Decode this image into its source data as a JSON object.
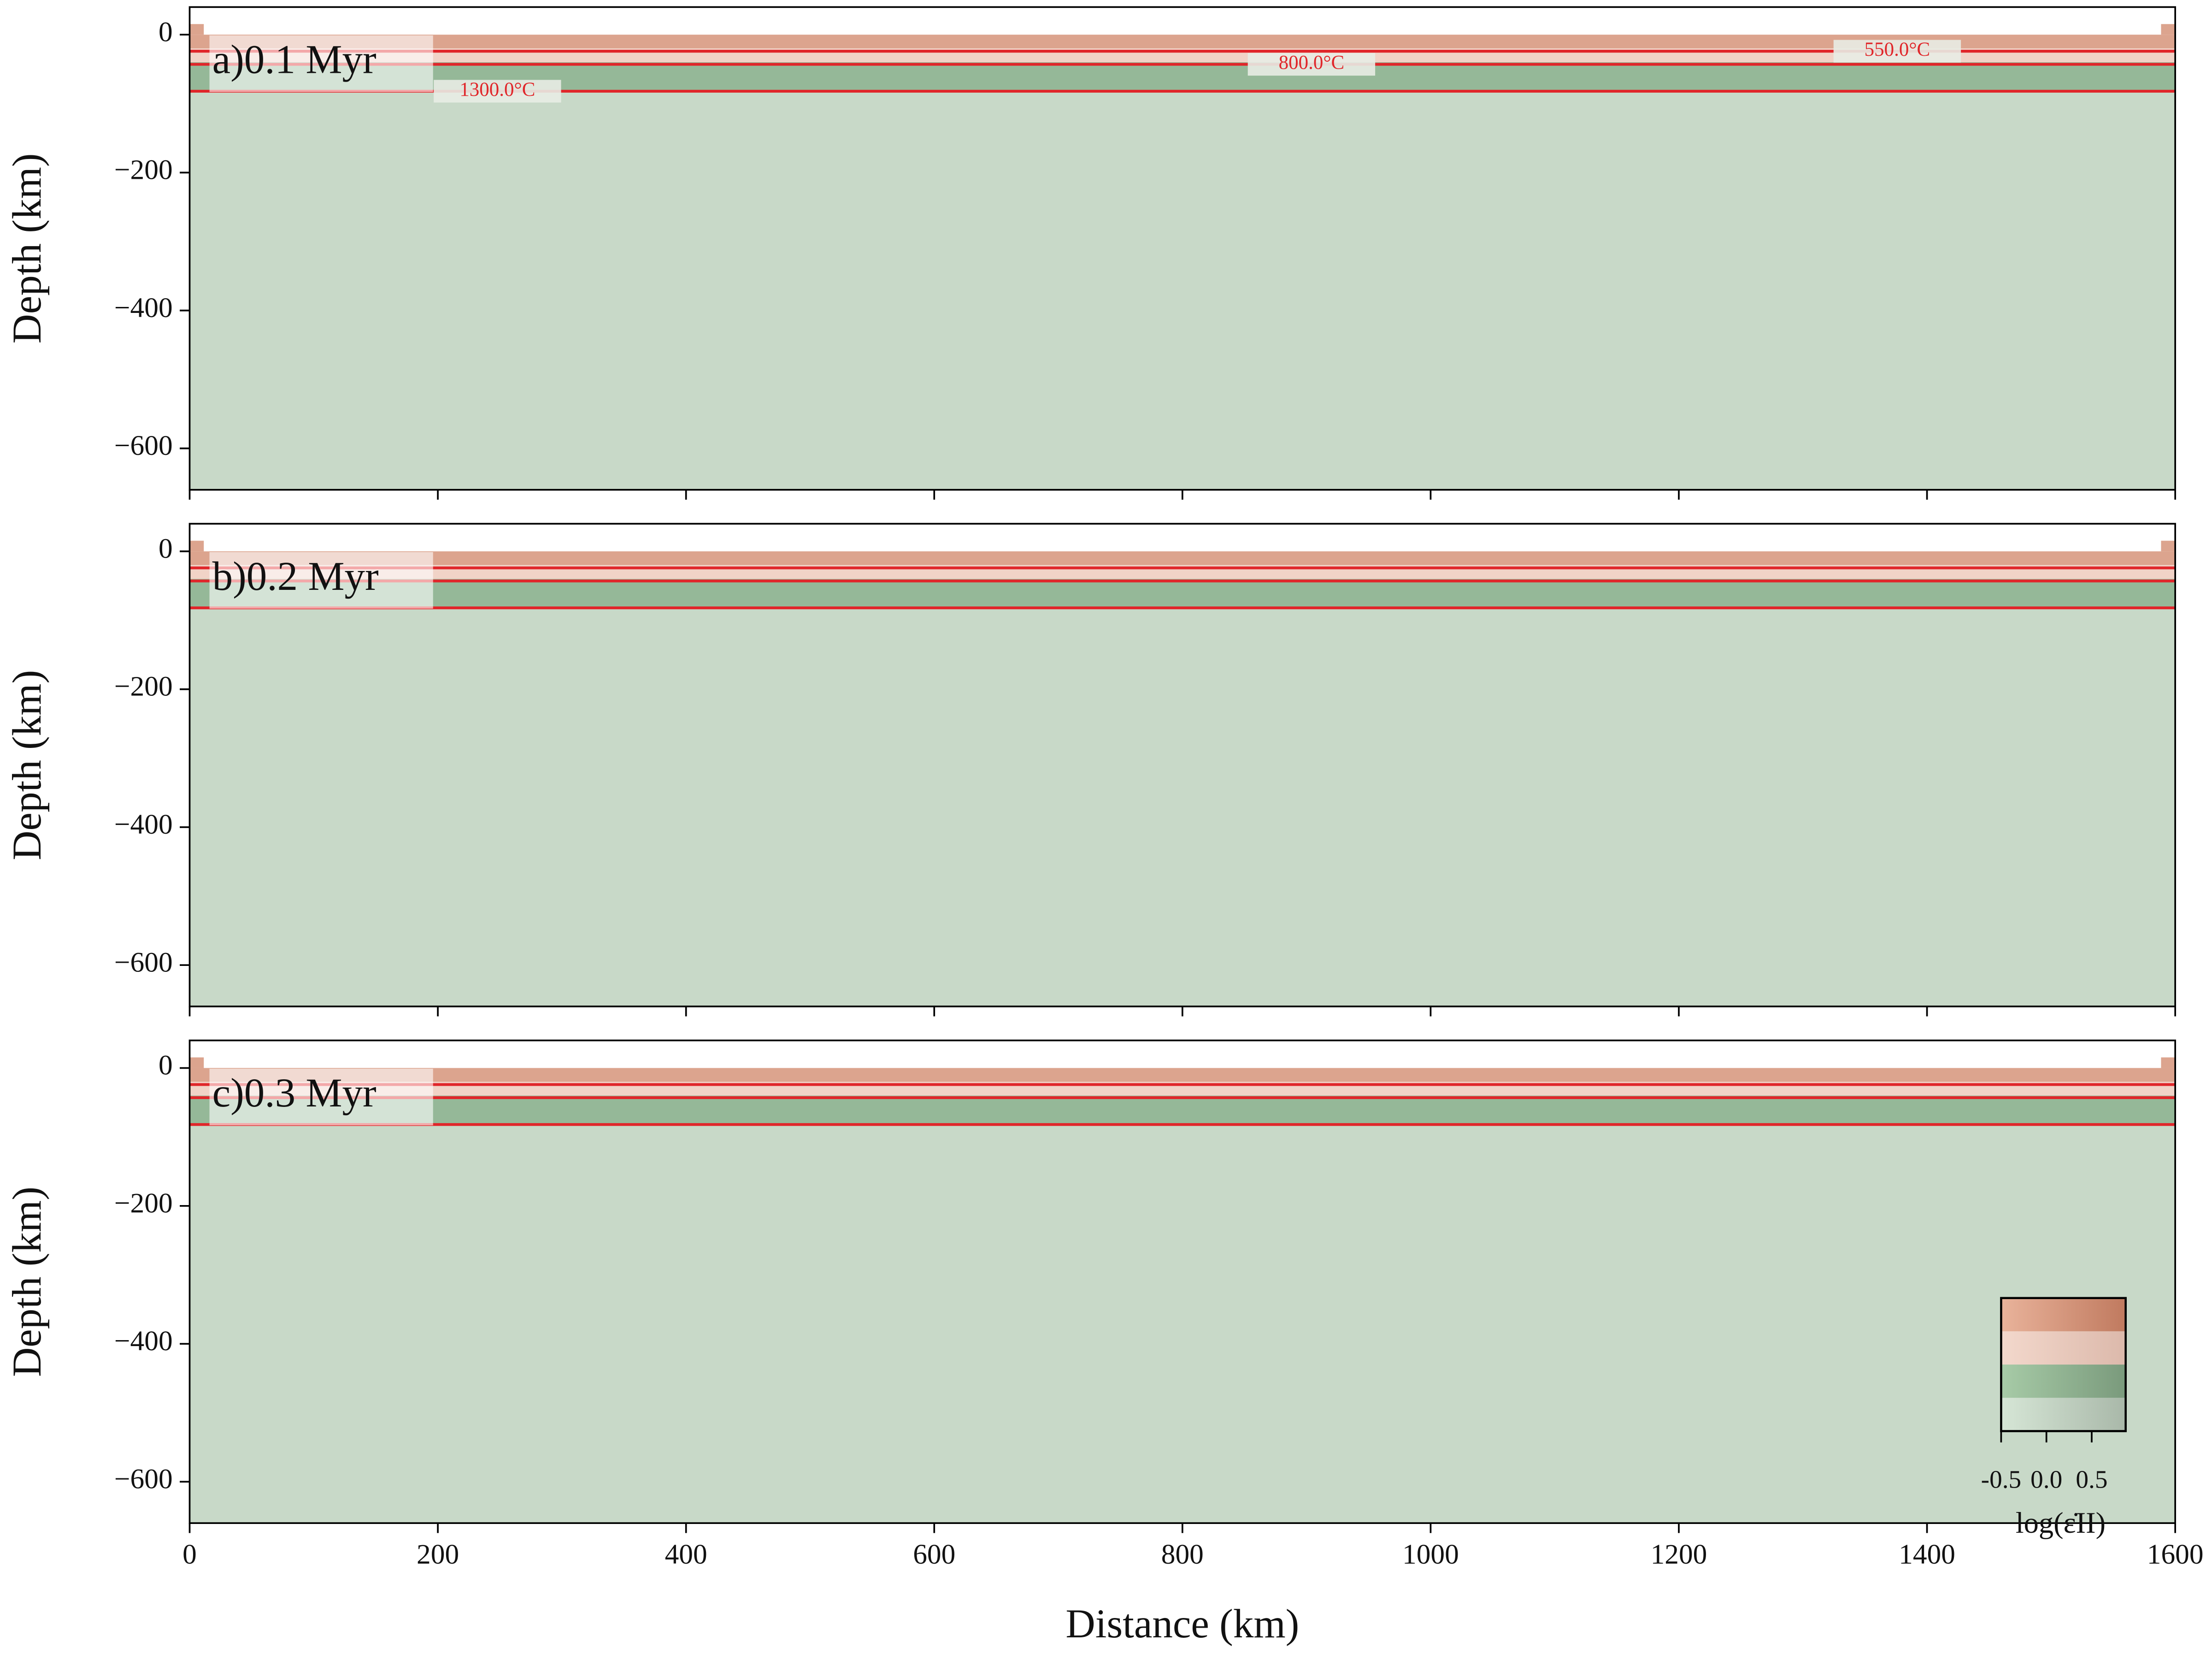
{
  "chart_data": [
    {
      "type": "heatmap",
      "panel_label": "a)0.1 Myr",
      "ylabel": "Depth (km)",
      "xlim": [
        0,
        1600
      ],
      "ylim": [
        -660,
        40
      ],
      "xticks": [
        0,
        200,
        400,
        600,
        800,
        1000,
        1200,
        1400,
        1600
      ],
      "yticks": [
        0,
        {
          "value": -200,
          "label": "−200"
        },
        {
          "value": -400,
          "label": "−400"
        },
        {
          "value": -600,
          "label": "−600"
        }
      ],
      "layers": [
        {
          "color": "#dca48e",
          "top": 0,
          "bottom": -20
        },
        {
          "color": "#f1d3c7",
          "top": -20,
          "bottom": -40
        },
        {
          "color": "#95b898",
          "top": -40,
          "bottom": -82
        },
        {
          "color": "#c8d9c8",
          "top": -82,
          "bottom": -660
        }
      ],
      "isotherm_color": "#e0262a",
      "isotherm_depths": [
        -24,
        -43,
        -82
      ],
      "isotherm_labels": [
        "550.0°C",
        "800.0°C",
        "1300.0°C"
      ]
    },
    {
      "type": "heatmap",
      "panel_label": "b)0.2 Myr",
      "ylabel": "Depth (km)",
      "xlim": [
        0,
        1600
      ],
      "ylim": [
        -660,
        40
      ],
      "xticks": [
        0,
        200,
        400,
        600,
        800,
        1000,
        1200,
        1400,
        1600
      ],
      "yticks": [
        0,
        {
          "value": -200,
          "label": "−200"
        },
        {
          "value": -400,
          "label": "−400"
        },
        {
          "value": -600,
          "label": "−600"
        }
      ],
      "layers": [
        {
          "color": "#dca48e",
          "top": 0,
          "bottom": -20
        },
        {
          "color": "#f1d3c7",
          "top": -20,
          "bottom": -40
        },
        {
          "color": "#95b898",
          "top": -40,
          "bottom": -82
        },
        {
          "color": "#c8d9c8",
          "top": -82,
          "bottom": -660
        }
      ],
      "isotherm_color": "#e0262a",
      "isotherm_depths": [
        -24,
        -43,
        -82
      ]
    },
    {
      "type": "heatmap",
      "panel_label": "c)0.3 Myr",
      "ylabel": "Depth (km)",
      "xlabel": "Distance (km)",
      "xlim": [
        0,
        1600
      ],
      "ylim": [
        -660,
        40
      ],
      "xticks": [
        0,
        200,
        400,
        600,
        800,
        1000,
        1200,
        1400,
        1600
      ],
      "yticks": [
        0,
        {
          "value": -200,
          "label": "−200"
        },
        {
          "value": -400,
          "label": "−400"
        },
        {
          "value": -600,
          "label": "−600"
        }
      ],
      "layers": [
        {
          "color": "#dca48e",
          "top": 0,
          "bottom": -20
        },
        {
          "color": "#f1d3c7",
          "top": -20,
          "bottom": -40
        },
        {
          "color": "#95b898",
          "top": -40,
          "bottom": -82
        },
        {
          "color": "#c8d9c8",
          "top": -82,
          "bottom": -660
        }
      ],
      "isotherm_color": "#e0262a",
      "isotherm_depths": [
        -24,
        -43,
        -82
      ],
      "colorbar": {
        "clim": [
          -0.5,
          0.875
        ],
        "ticks": [
          -0.5,
          {
            "value": 0,
            "label": "0.0"
          },
          0.5
        ],
        "label": "log(ε̇II)",
        "rows": [
          [
            "#e9b39b",
            "#c07a5f"
          ],
          [
            "#f3d8cc",
            "#dcb9ab"
          ],
          [
            "#a7cba7",
            "#7a9a7c"
          ],
          [
            "#d6e6d6",
            "#a9b8a9"
          ]
        ]
      }
    }
  ]
}
